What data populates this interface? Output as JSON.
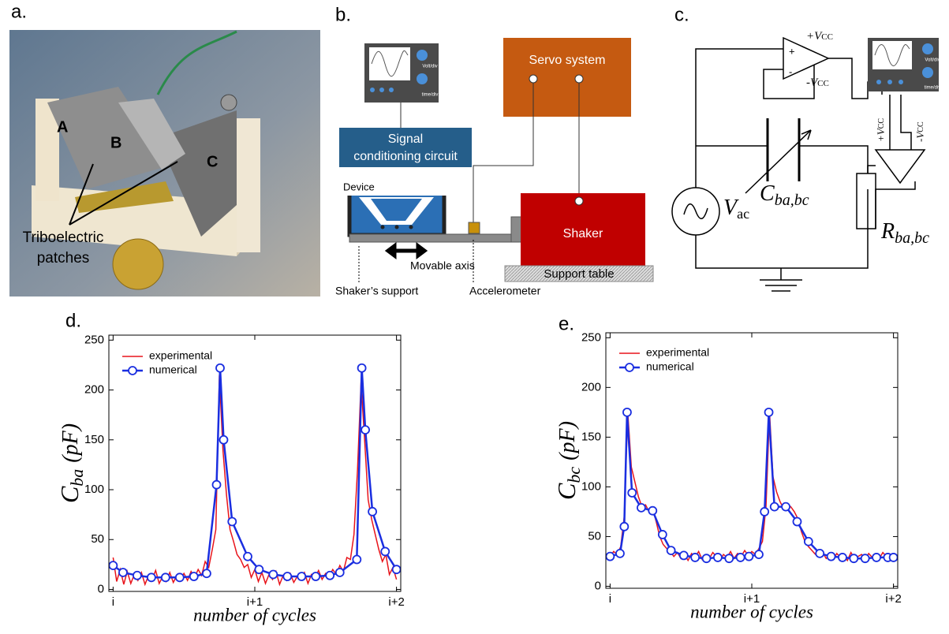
{
  "panels": {
    "a": {
      "label": "a.",
      "photo_labels": [
        "A",
        "B",
        "C"
      ],
      "patch_label": [
        "Triboelectric",
        "patches"
      ]
    },
    "b": {
      "label": "b.",
      "servo": "Servo system",
      "conditioning": [
        "Signal",
        "conditioning circuit"
      ],
      "device": "Device",
      "shaker": "Shaker",
      "movable_axis": "Movable axis",
      "support_table": "Support table",
      "shaker_support": "Shaker’s support",
      "accelerometer": "Accelerometer",
      "volt_div": "Volt/div",
      "time_div": "time/div"
    },
    "c": {
      "label": "c.",
      "vcc_plus": [
        "+V",
        "CC"
      ],
      "vcc_minus": [
        "-V",
        "CC"
      ],
      "capacitor": [
        "C",
        "ba,bc"
      ],
      "source": [
        "V",
        "ac"
      ],
      "resistor": [
        "R",
        "ba,bc"
      ],
      "volt_div": "Volt/div",
      "time_div": "time/div"
    }
  },
  "chart_data": [
    {
      "type": "line",
      "label": "d.",
      "xlabel": "number of cycles",
      "ylabel": [
        "C",
        "ba",
        "(pF)"
      ],
      "xlim": [
        -0.03,
        2.03
      ],
      "xticks": [
        {
          "value": 0,
          "label": "i"
        },
        {
          "value": 1,
          "label": "i+1"
        },
        {
          "value": 2,
          "label": "i+2"
        }
      ],
      "ylim": [
        -2,
        255
      ],
      "yticks": [
        0,
        50,
        100,
        150,
        200,
        250
      ],
      "legend": "upper left",
      "series": [
        {
          "name": "experimental",
          "color": "#e8141b",
          "marker": "none",
          "x": [
            0,
            0.025,
            0.05,
            0.075,
            0.1,
            0.125,
            0.15,
            0.175,
            0.2,
            0.225,
            0.25,
            0.275,
            0.3,
            0.325,
            0.35,
            0.375,
            0.4,
            0.425,
            0.45,
            0.475,
            0.5,
            0.525,
            0.55,
            0.575,
            0.6,
            0.625,
            0.65,
            0.675,
            0.7,
            0.725,
            0.75,
            0.775,
            0.8,
            0.825,
            0.85,
            0.875,
            0.9,
            0.925,
            0.95,
            0.975,
            1,
            1.025,
            1.05,
            1.075,
            1.1,
            1.125,
            1.15,
            1.175,
            1.2,
            1.225,
            1.25,
            1.275,
            1.3,
            1.325,
            1.35,
            1.375,
            1.4,
            1.425,
            1.45,
            1.475,
            1.5,
            1.525,
            1.55,
            1.575,
            1.6,
            1.625,
            1.65,
            1.675,
            1.7,
            1.725,
            1.75,
            1.775,
            1.8,
            1.825,
            1.85,
            1.875,
            1.9,
            1.925,
            1.95,
            1.975,
            2
          ],
          "values": [
            32,
            8,
            20,
            5,
            18,
            6,
            15,
            9,
            17,
            5,
            14,
            10,
            19,
            6,
            13,
            8,
            17,
            7,
            14,
            11,
            16,
            9,
            18,
            12,
            20,
            14,
            28,
            22,
            40,
            60,
            215,
            140,
            95,
            60,
            48,
            35,
            30,
            22,
            25,
            12,
            20,
            8,
            17,
            6,
            15,
            10,
            18,
            5,
            14,
            9,
            16,
            7,
            13,
            11,
            17,
            6,
            15,
            12,
            19,
            10,
            16,
            13,
            20,
            15,
            24,
            18,
            32,
            30,
            55,
            120,
            208,
            150,
            90,
            70,
            55,
            40,
            28,
            35,
            15,
            22,
            10
          ]
        },
        {
          "name": "numerical",
          "color": "#1a2ee0",
          "marker": "circle",
          "x": [
            0,
            0.07,
            0.17,
            0.27,
            0.37,
            0.47,
            0.57,
            0.66,
            0.73,
            0.755,
            0.78,
            0.84,
            0.95,
            1.03,
            1.13,
            1.23,
            1.33,
            1.43,
            1.53,
            1.6,
            1.72,
            1.755,
            1.78,
            1.83,
            1.92,
            2.0
          ],
          "values": [
            24,
            17,
            14,
            12,
            12,
            12,
            13,
            16,
            105,
            222,
            150,
            68,
            33,
            20,
            15,
            13,
            13,
            13,
            14,
            17,
            30,
            222,
            160,
            78,
            38,
            20
          ]
        }
      ]
    },
    {
      "type": "line",
      "label": "e.",
      "xlabel": "number of cycles",
      "ylabel": [
        "C",
        "bc",
        "(pF)"
      ],
      "xlim": [
        -0.03,
        2.03
      ],
      "xticks": [
        {
          "value": 0,
          "label": "i"
        },
        {
          "value": 1,
          "label": "i+1"
        },
        {
          "value": 2,
          "label": "i+2"
        }
      ],
      "ylim": [
        -2,
        255
      ],
      "yticks": [
        0,
        50,
        100,
        150,
        200,
        250
      ],
      "legend": "upper left",
      "series": [
        {
          "name": "experimental",
          "color": "#e8141b",
          "marker": "none",
          "x": [
            0,
            0.025,
            0.05,
            0.075,
            0.1,
            0.125,
            0.15,
            0.175,
            0.2,
            0.225,
            0.25,
            0.275,
            0.3,
            0.325,
            0.35,
            0.375,
            0.4,
            0.425,
            0.45,
            0.475,
            0.5,
            0.525,
            0.55,
            0.575,
            0.6,
            0.625,
            0.65,
            0.675,
            0.7,
            0.725,
            0.75,
            0.775,
            0.8,
            0.825,
            0.85,
            0.875,
            0.9,
            0.925,
            0.95,
            0.975,
            1,
            1.025,
            1.05,
            1.075,
            1.1,
            1.125,
            1.15,
            1.175,
            1.2,
            1.225,
            1.25,
            1.275,
            1.3,
            1.325,
            1.35,
            1.375,
            1.4,
            1.425,
            1.45,
            1.475,
            1.5,
            1.525,
            1.55,
            1.575,
            1.6,
            1.625,
            1.65,
            1.675,
            1.7,
            1.725,
            1.75,
            1.775,
            1.8,
            1.825,
            1.85,
            1.875,
            1.9,
            1.925,
            1.95,
            1.975,
            2
          ],
          "values": [
            30,
            35,
            32,
            40,
            70,
            175,
            120,
            105,
            90,
            80,
            82,
            75,
            78,
            65,
            50,
            42,
            38,
            35,
            30,
            34,
            28,
            32,
            26,
            33,
            29,
            35,
            27,
            31,
            28,
            34,
            30,
            26,
            32,
            29,
            35,
            28,
            33,
            30,
            36,
            31,
            35,
            32,
            38,
            45,
            80,
            175,
            110,
            95,
            85,
            78,
            82,
            80,
            75,
            68,
            55,
            45,
            40,
            36,
            32,
            30,
            34,
            28,
            32,
            27,
            33,
            29,
            31,
            26,
            34,
            28,
            30,
            32,
            27,
            33,
            29,
            31,
            28,
            34,
            30,
            32,
            29
          ]
        },
        {
          "name": "numerical",
          "color": "#1a2ee0",
          "marker": "circle",
          "x": [
            0,
            0.07,
            0.1,
            0.12,
            0.155,
            0.22,
            0.3,
            0.37,
            0.43,
            0.52,
            0.6,
            0.68,
            0.76,
            0.84,
            0.92,
            0.98,
            1.05,
            1.09,
            1.12,
            1.16,
            1.24,
            1.32,
            1.4,
            1.48,
            1.56,
            1.64,
            1.72,
            1.8,
            1.88,
            1.96,
            2.0
          ],
          "values": [
            30,
            33,
            60,
            175,
            94,
            79,
            76,
            52,
            36,
            31,
            29,
            28,
            29,
            28,
            29,
            30,
            32,
            75,
            175,
            80,
            80,
            65,
            45,
            33,
            30,
            29,
            28,
            28,
            29,
            29,
            29
          ]
        }
      ]
    }
  ]
}
